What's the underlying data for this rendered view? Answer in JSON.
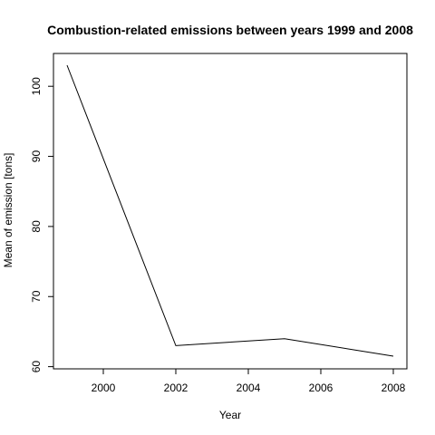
{
  "chart_data": {
    "type": "line",
    "title": "Combustion-related emissions between years 1999 and 2008",
    "xlabel": "Year",
    "ylabel": "Mean of emission [tons]",
    "x": [
      1999,
      2002,
      2005,
      2008
    ],
    "series": [
      {
        "values": [
          103.0,
          63.0,
          64.0,
          61.5
        ],
        "color": "#000000"
      }
    ],
    "xlim": [
      1999,
      2008
    ],
    "ylim": [
      61.5,
      103
    ],
    "xticks": [
      2000,
      2002,
      2004,
      2006,
      2008
    ],
    "yticks": [
      60,
      70,
      80,
      90,
      100
    ],
    "grid": false,
    "legend": "none"
  }
}
